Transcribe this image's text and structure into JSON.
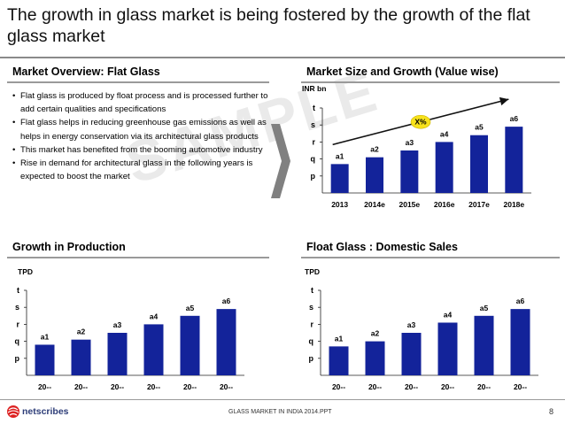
{
  "title": "The growth in glass market is being fostered by the growth of the flat glass market",
  "overview": {
    "heading": "Market Overview: Flat Glass",
    "bullets": [
      "Flat glass is produced by float process and is processed further to add certain qualities and specifications",
      "Flat glass helps in reducing greenhouse gas emissions as well as helps in energy conservation via its architectural glass products",
      "This market has benefited from the booming automotive industry",
      "Rise in demand for architectural glass in the following years is expected to boost the market"
    ],
    "watermark": "SAMPLE"
  },
  "colors": {
    "bar": "#13239a",
    "rule": "#8a8a8a",
    "cagr_fill": "#f7e21b"
  },
  "chart_data": [
    {
      "id": "market_size",
      "type": "bar",
      "title": "Market Size and Growth (Value wise)",
      "ylabel": "INR bn",
      "y_tick_labels": [
        "p",
        "q",
        "r",
        "s",
        "t"
      ],
      "categories": [
        "2013",
        "2014e",
        "2015e",
        "2016e",
        "2017e",
        "2018e"
      ],
      "values": [
        1.7,
        2.1,
        2.5,
        3.0,
        3.4,
        3.9
      ],
      "data_labels": [
        "a1",
        "a2",
        "a3",
        "a4",
        "a5",
        "a6"
      ],
      "ylim": [
        0,
        5
      ],
      "annotation": "X%"
    },
    {
      "id": "production",
      "type": "bar",
      "title": "Growth in Production",
      "ylabel": "TPD",
      "y_tick_labels": [
        "p",
        "q",
        "r",
        "s",
        "t"
      ],
      "categories": [
        "20--",
        "20--",
        "20--",
        "20--",
        "20--",
        "20--"
      ],
      "values": [
        1.8,
        2.1,
        2.5,
        3.0,
        3.5,
        3.9
      ],
      "data_labels": [
        "a1",
        "a2",
        "a3",
        "a4",
        "a5",
        "a6"
      ],
      "ylim": [
        0,
        5
      ]
    },
    {
      "id": "domestic_sales",
      "type": "bar",
      "title": "Float Glass : Domestic Sales",
      "ylabel": "TPD",
      "y_tick_labels": [
        "p",
        "q",
        "r",
        "s",
        "t"
      ],
      "categories": [
        "20--",
        "20--",
        "20--",
        "20--",
        "20--",
        "20--"
      ],
      "values": [
        1.7,
        2.0,
        2.5,
        3.1,
        3.5,
        3.9
      ],
      "data_labels": [
        "a1",
        "a2",
        "a3",
        "a4",
        "a5",
        "a6"
      ],
      "ylim": [
        0,
        5
      ]
    }
  ],
  "footer": {
    "logo_text": "netscribes",
    "file": "GLASS MARKET IN INDIA 2014.PPT",
    "page": "8"
  }
}
